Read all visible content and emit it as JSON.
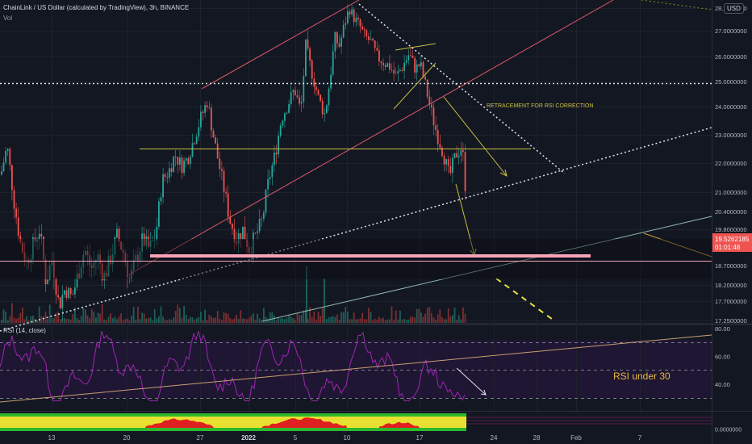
{
  "header": {
    "title": "ChainLink / US Dollar (calculated by TradingView), 3h, BINANCE",
    "volume_label": "Vol",
    "currency_badge": "USD"
  },
  "price_tag": {
    "price": "19.5262185",
    "countdown": "01:01:48"
  },
  "annotations": {
    "retracement": "RETRACEMENT FOR RSI CORRECTION",
    "rsi_note": "RSI under 30"
  },
  "rsi_panel": {
    "label": "RSI (14, close)"
  },
  "colors": {
    "bg": "#131722",
    "up": "#26a69a",
    "down": "#ef5350",
    "rsi": "#9c27b0",
    "annotation": "#c8c040",
    "support": "#f8a4b8",
    "price_tag": "#ef5350"
  },
  "chart_data": [
    {
      "type": "candlestick",
      "title": "ChainLink / US Dollar (calculated by TradingView), 3h, BINANCE",
      "y_axis_ticks": [
        28.1,
        27.0,
        26.0,
        25.0,
        24.0,
        23.0,
        22.0,
        21.0,
        20.4,
        19.8,
        18.7,
        18.2,
        17.7,
        17.25
      ],
      "x_axis_ticks": [
        "13",
        "20",
        "27",
        "2022",
        "5",
        "10",
        "17",
        "24",
        "28",
        "Feb",
        "7"
      ],
      "ylim": [
        17.1,
        28.4
      ],
      "series_close": [
        [
          0,
          21.6
        ],
        [
          8,
          22.6
        ],
        [
          16,
          20.8
        ],
        [
          24,
          19.4
        ],
        [
          32,
          18.8
        ],
        [
          40,
          19.3
        ],
        [
          48,
          19.8
        ],
        [
          56,
          18.3
        ],
        [
          64,
          18.9
        ],
        [
          72,
          17.6
        ],
        [
          80,
          18.1
        ],
        [
          88,
          17.8
        ],
        [
          96,
          18.5
        ],
        [
          104,
          19.2
        ],
        [
          112,
          18.6
        ],
        [
          120,
          19.0
        ],
        [
          128,
          18.4
        ],
        [
          136,
          18.9
        ],
        [
          144,
          19.6
        ],
        [
          152,
          19.1
        ],
        [
          160,
          18.3
        ],
        [
          168,
          18.9
        ],
        [
          176,
          19.5
        ],
        [
          184,
          19.2
        ],
        [
          192,
          19.6
        ],
        [
          200,
          21.4
        ],
        [
          208,
          21.7
        ],
        [
          216,
          22.3
        ],
        [
          224,
          21.9
        ],
        [
          232,
          22.2
        ],
        [
          240,
          22.9
        ],
        [
          248,
          23.6
        ],
        [
          256,
          24.2
        ],
        [
          262,
          23.2
        ],
        [
          268,
          22.3
        ],
        [
          276,
          21.2
        ],
        [
          284,
          20.1
        ],
        [
          292,
          19.5
        ],
        [
          300,
          19.8
        ],
        [
          308,
          19.2
        ],
        [
          316,
          19.6
        ],
        [
          324,
          20.1
        ],
        [
          332,
          21.4
        ],
        [
          340,
          22.3
        ],
        [
          348,
          23.6
        ],
        [
          356,
          24.1
        ],
        [
          364,
          24.7
        ],
        [
          372,
          23.8
        ],
        [
          378,
          26.4
        ],
        [
          386,
          25.3
        ],
        [
          394,
          24.3
        ],
        [
          402,
          23.7
        ],
        [
          408,
          25.1
        ],
        [
          414,
          26.7
        ],
        [
          420,
          26.4
        ],
        [
          426,
          27.3
        ],
        [
          432,
          28.1
        ],
        [
          438,
          27.6
        ],
        [
          444,
          27.3
        ],
        [
          450,
          26.8
        ],
        [
          458,
          26.6
        ],
        [
          466,
          26.0
        ],
        [
          474,
          25.8
        ],
        [
          482,
          25.6
        ],
        [
          490,
          25.2
        ],
        [
          498,
          25.6
        ],
        [
          506,
          26.1
        ],
        [
          514,
          25.5
        ],
        [
          520,
          25.7
        ],
        [
          526,
          24.9
        ],
        [
          532,
          24.0
        ],
        [
          540,
          23.1
        ],
        [
          548,
          22.4
        ],
        [
          556,
          21.5
        ],
        [
          564,
          22.3
        ],
        [
          572,
          22.6
        ],
        [
          576,
          21.1
        ],
        [
          580,
          19.5
        ]
      ],
      "lines": [
        {
          "label": "horizontal level",
          "y": 22.5
        },
        {
          "label": "dotted level",
          "y": 25.0
        },
        {
          "label": "support zone",
          "y": 19.0
        },
        {
          "label": "lower support",
          "y": 18.85
        }
      ]
    },
    {
      "type": "line",
      "title": "RSI (14, close)",
      "y_axis_ticks": [
        80,
        60,
        40
      ],
      "ylim": [
        20,
        82
      ],
      "levels": [
        70,
        50,
        30
      ]
    }
  ]
}
